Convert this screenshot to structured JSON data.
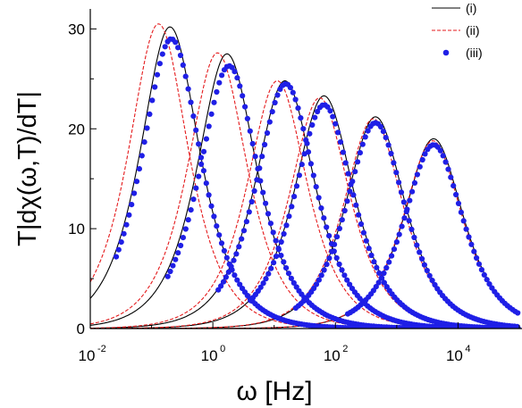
{
  "chart_data": {
    "type": "line",
    "title": "",
    "xlabel": "ω [Hz]",
    "ylabel": "T|dχ(ω,T)/dT|",
    "x_scale": "log",
    "xlim": [
      0.01,
      100000
    ],
    "ylim": [
      0,
      32
    ],
    "x_ticks": [
      {
        "value": 0.01,
        "base": "10",
        "exp": "-2"
      },
      {
        "value": 1,
        "base": "10",
        "exp": "0"
      },
      {
        "value": 100,
        "base": "10",
        "exp": "2"
      },
      {
        "value": 10000,
        "base": "10",
        "exp": "4"
      }
    ],
    "y_ticks": [
      0,
      10,
      20,
      30
    ],
    "grid": false,
    "legend": {
      "position": "top-right",
      "entries": [
        {
          "label": "(i)",
          "style": "solid-line",
          "color": "#000000"
        },
        {
          "label": "(ii)",
          "style": "dashed-line",
          "color": "#e41a1c"
        },
        {
          "label": "(iii)",
          "style": "points",
          "color": "#1f1fe6"
        }
      ]
    },
    "peaks": [
      {
        "omega_peak": 0.2,
        "i": 30.2,
        "ii": 30.5,
        "iii": 29.0,
        "ii_shift": 0.65,
        "iii_shift": 1.05
      },
      {
        "omega_peak": 1.7,
        "i": 27.5,
        "ii": 27.6,
        "iii": 26.3,
        "ii_shift": 0.7,
        "iii_shift": 1.08
      },
      {
        "omega_peak": 15,
        "i": 24.8,
        "ii": 24.8,
        "iii": 24.5,
        "ii_shift": 0.75,
        "iii_shift": 1.03
      },
      {
        "omega_peak": 65,
        "i": 23.3,
        "ii": 23.1,
        "iii": 22.4,
        "ii_shift": 0.85,
        "iii_shift": 1.0
      },
      {
        "omega_peak": 450,
        "i": 21.2,
        "ii": 21.0,
        "iii": 20.6,
        "ii_shift": 0.92,
        "iii_shift": 1.0
      },
      {
        "omega_peak": 4000,
        "i": 19.0,
        "ii": 18.8,
        "iii": 18.4,
        "ii_shift": 0.97,
        "iii_shift": 1.0
      }
    ],
    "colors": {
      "i": "#000000",
      "ii": "#e41a1c",
      "iii": "#1f1fe6"
    }
  }
}
